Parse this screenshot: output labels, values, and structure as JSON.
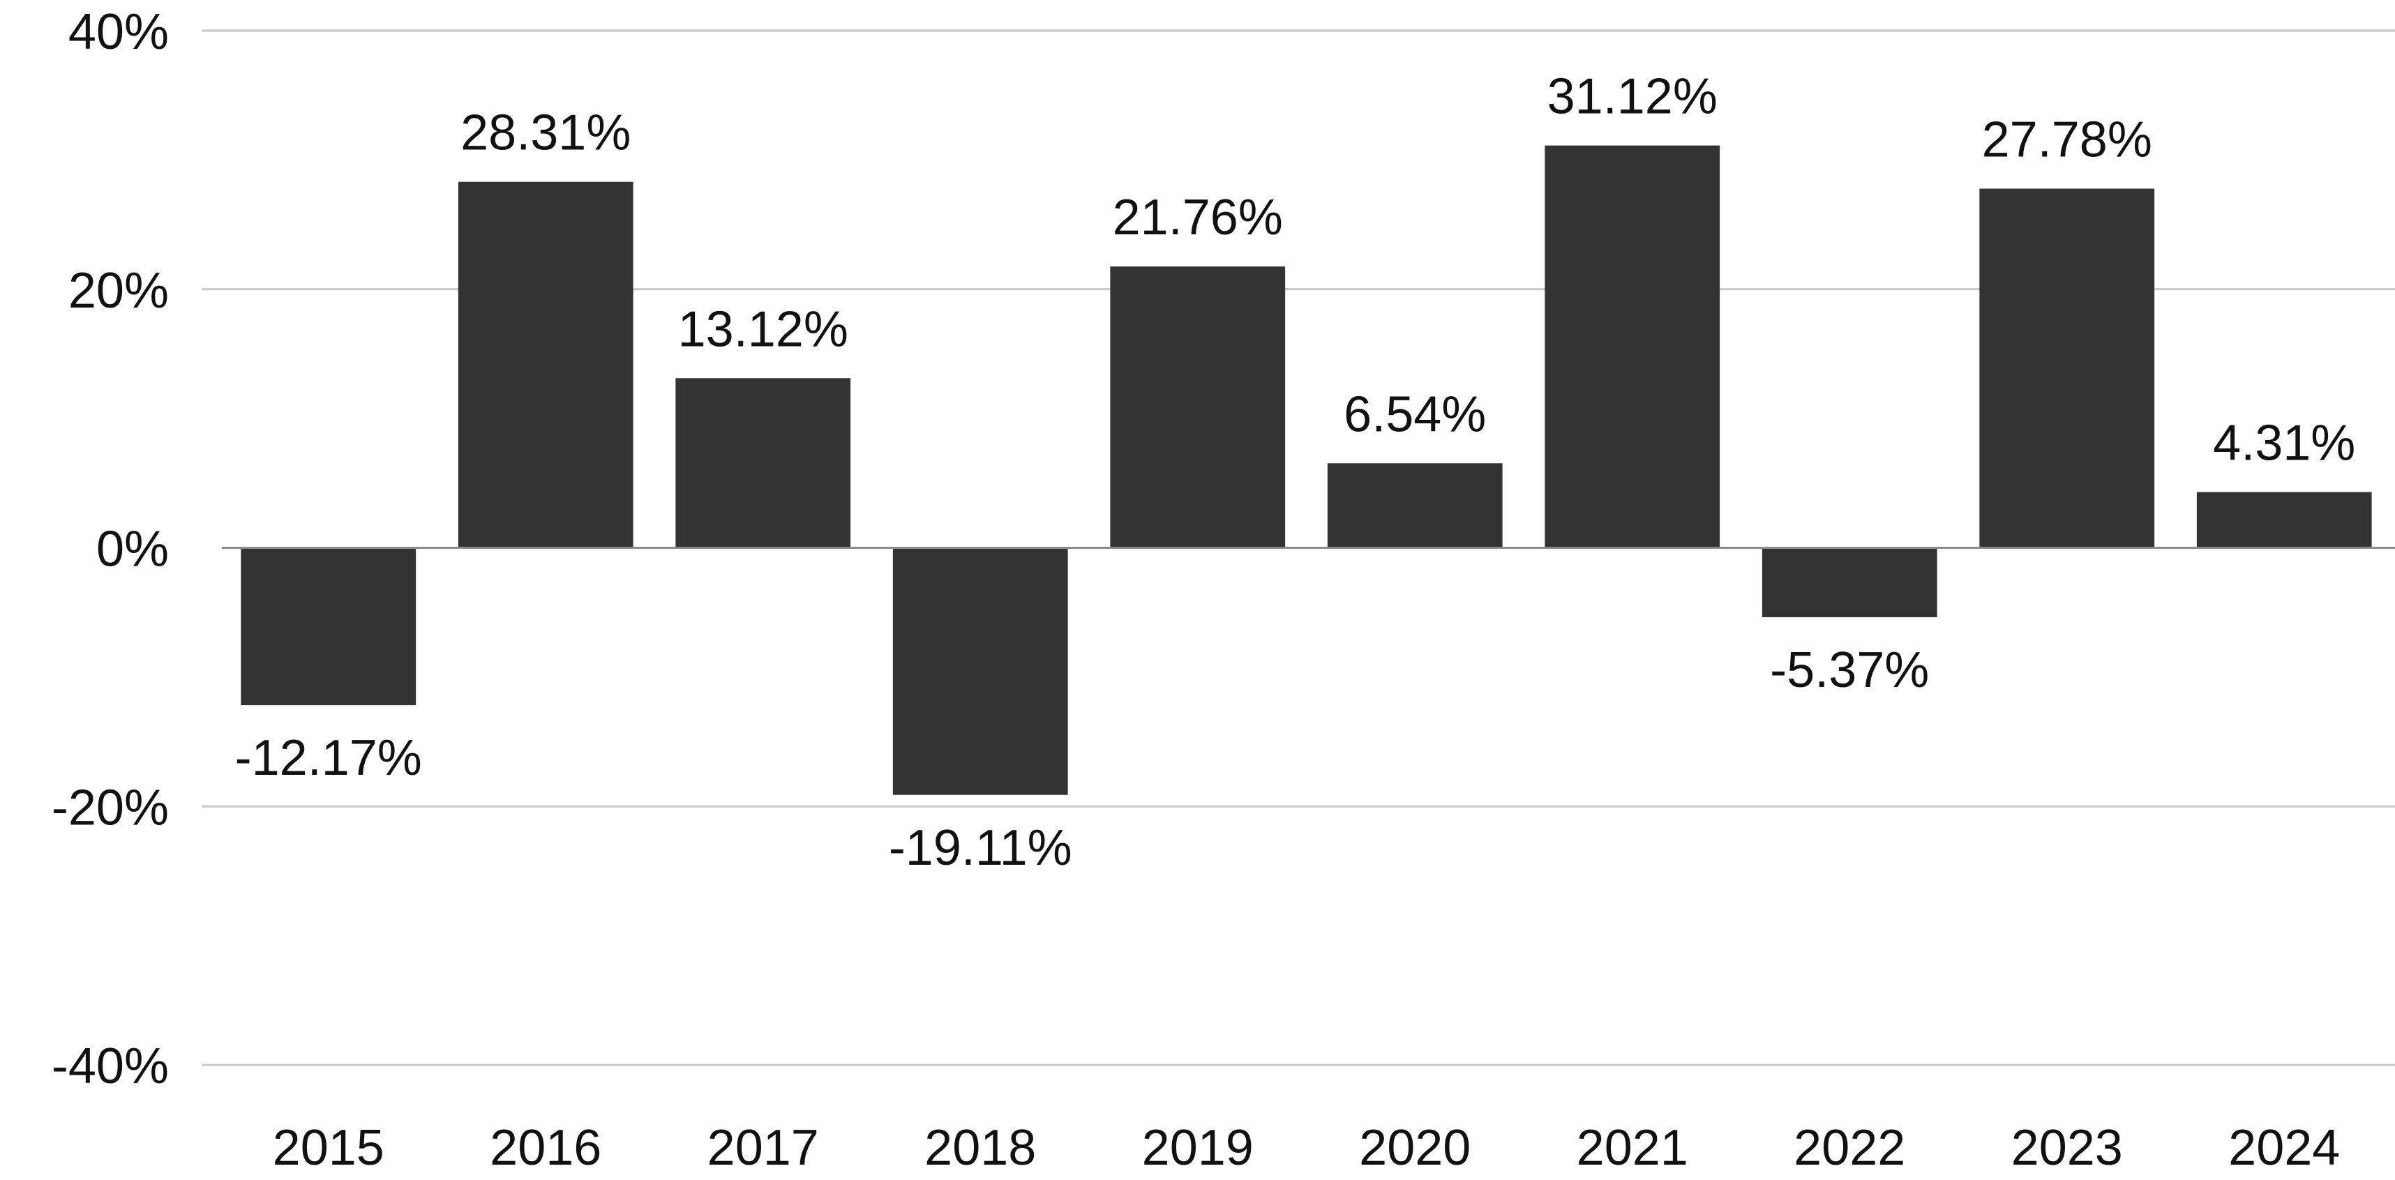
{
  "chart_data": {
    "type": "bar",
    "title": "",
    "xlabel": "",
    "ylabel": "",
    "categories": [
      "2015",
      "2016",
      "2017",
      "2018",
      "2019",
      "2020",
      "2021",
      "2022",
      "2023",
      "2024"
    ],
    "values": [
      -12.17,
      28.31,
      13.12,
      -19.11,
      21.76,
      6.54,
      31.12,
      -5.37,
      27.78,
      4.31
    ],
    "value_labels": [
      "-12.17%",
      "28.31%",
      "13.12%",
      "-19.11%",
      "21.76%",
      "6.54%",
      "31.12%",
      "-5.37%",
      "27.78%",
      "4.31%"
    ],
    "ylim": [
      -40,
      40
    ],
    "yticks": [
      40,
      20,
      0,
      -20,
      -40
    ],
    "ytick_labels": [
      "40%",
      "20%",
      "0%",
      "-20%",
      "-40%"
    ],
    "grid": true,
    "legend": "none",
    "bar_color": "#333333"
  }
}
